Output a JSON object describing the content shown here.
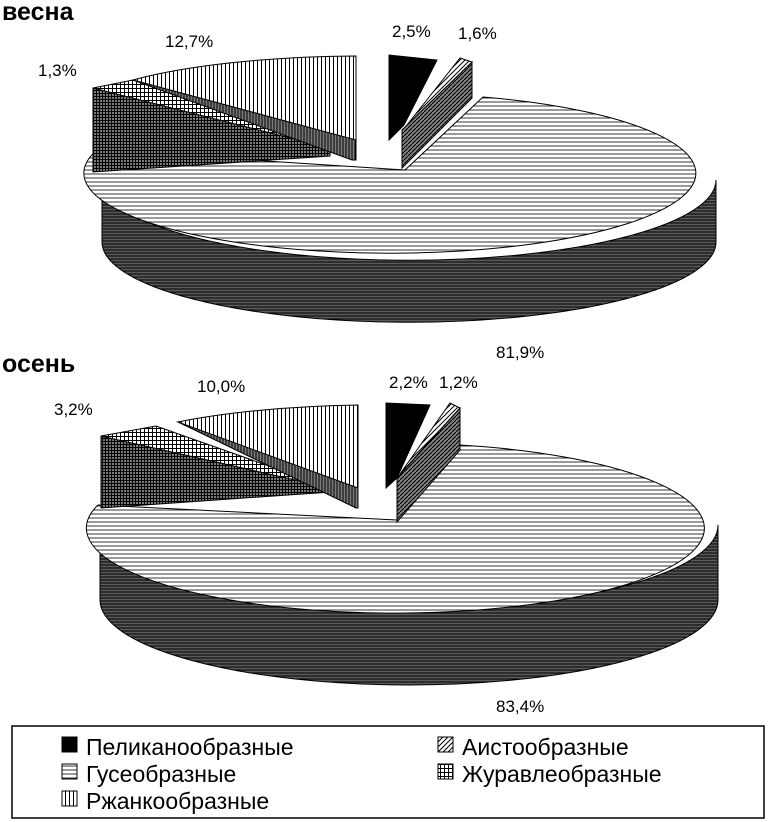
{
  "chart_data": [
    {
      "type": "pie",
      "title": "весна",
      "slices": [
        {
          "name": "Пеликанообразные",
          "value": 2.5,
          "label": "2,5%"
        },
        {
          "name": "Аистообразные",
          "value": 1.6,
          "label": "1,6%"
        },
        {
          "name": "Гусеобразные",
          "value": 81.9,
          "label": "81,9%"
        },
        {
          "name": "Журавлеобразные",
          "value": 1.3,
          "label": "1,3%"
        },
        {
          "name": "Ржанкообразные",
          "value": 12.7,
          "label": "12,7%"
        }
      ]
    },
    {
      "type": "pie",
      "title": "осень",
      "slices": [
        {
          "name": "Пеликанообразные",
          "value": 2.2,
          "label": "2,2%"
        },
        {
          "name": "Аистообразные",
          "value": 1.2,
          "label": "1,2%"
        },
        {
          "name": "Гусеобразные",
          "value": 83.4,
          "label": "83,4%"
        },
        {
          "name": "Журавлеобразные",
          "value": 3.2,
          "label": "3,2%"
        },
        {
          "name": "Ржанкообразные",
          "value": 10.0,
          "label": "10,0%"
        }
      ]
    }
  ],
  "legend": {
    "items": [
      {
        "name": "Пеликанообразные",
        "pattern": "solid-black"
      },
      {
        "name": "Аистообразные",
        "pattern": "diagonal-hatch"
      },
      {
        "name": "Гусеобразные",
        "pattern": "horizontal-lines"
      },
      {
        "name": "Журавлеобразные",
        "pattern": "checker-grid"
      },
      {
        "name": "Ржанкообразные",
        "pattern": "vertical-lines"
      }
    ]
  }
}
